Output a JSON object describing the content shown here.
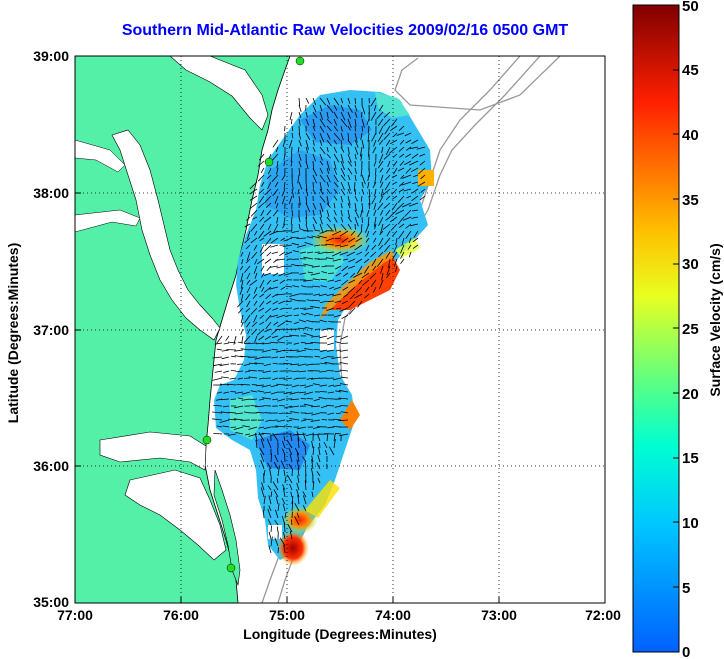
{
  "title": "Southern Mid-Atlantic Raw Velocities 2009/02/16 0500 GMT",
  "axes": {
    "xlabel": "Longitude (Degrees:Minutes)",
    "ylabel": "Latitude (Degrees:Minutes)",
    "xticks": [
      "77:00",
      "76:00",
      "75:00",
      "74:00",
      "73:00",
      "72:00"
    ],
    "yticks": [
      "39:00",
      "38:00",
      "37:00",
      "36:00",
      "35:00"
    ],
    "grid": "dotted"
  },
  "colorbar": {
    "label": "Surface Velocity (cm/s)",
    "ticks": [
      "50",
      "45",
      "40",
      "35",
      "30",
      "25",
      "20",
      "15",
      "10",
      "5",
      "0"
    ],
    "range": [
      0,
      50
    ],
    "colormap": "jet"
  },
  "colors": {
    "land": "#55f0a8",
    "water": "#ffffff",
    "title": "#0000ff",
    "bathymetry": "#999999",
    "station": "#22dd22"
  },
  "chart_data": {
    "type": "heatmap",
    "title": "Southern Mid-Atlantic Raw Velocities 2009/02/16 0500 GMT",
    "xlabel": "Longitude (Degrees:Minutes)",
    "ylabel": "Latitude (Degrees:Minutes)",
    "xlim": [
      -77,
      -72
    ],
    "ylim": [
      35,
      39
    ],
    "clim": [
      0,
      50
    ],
    "colorbar_label": "Surface Velocity (cm/s)",
    "stations": [
      {
        "lon": -74.9,
        "lat": 39.0
      },
      {
        "lon": -75.15,
        "lat": 38.22
      },
      {
        "lon": -75.75,
        "lat": 36.18
      },
      {
        "lon": -75.55,
        "lat": 35.25
      }
    ]
  }
}
